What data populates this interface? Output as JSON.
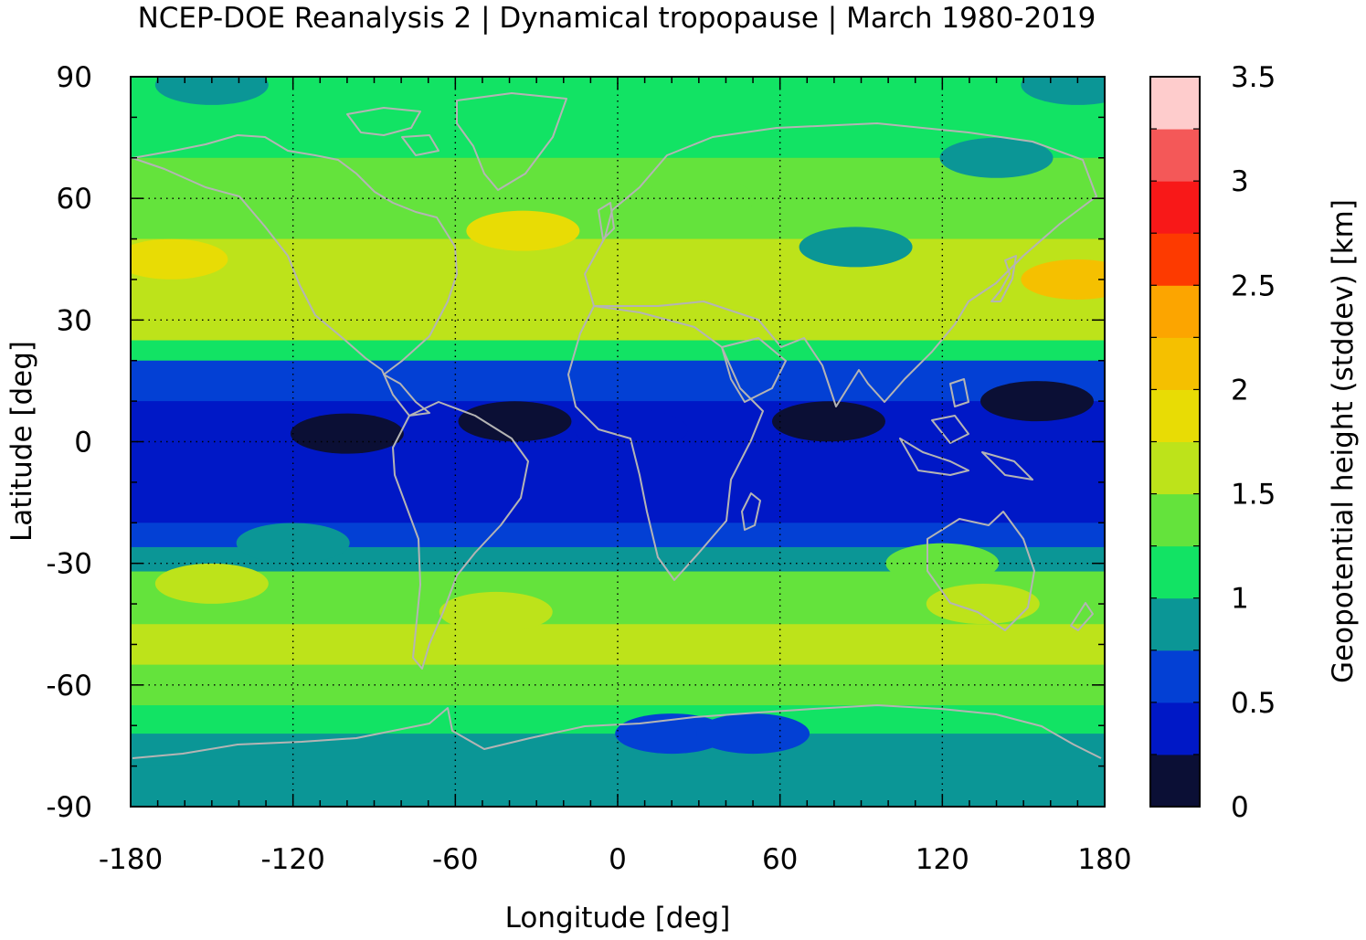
{
  "chart_data": {
    "type": "heatmap",
    "title": "NCEP-DOE Reanalysis 2 | Dynamical tropopause | March 1980-2019",
    "xlabel": "Longitude [deg]",
    "ylabel": "Latitude [deg]",
    "colorbar_label": "Geopotential height (stddev) [km]",
    "xlim": [
      -180,
      180
    ],
    "ylim": [
      -90,
      90
    ],
    "x_ticks": [
      -180,
      -120,
      -60,
      0,
      60,
      120,
      180
    ],
    "y_ticks": [
      90,
      60,
      30,
      0,
      -30,
      -60,
      -90
    ],
    "grid": true,
    "colorbar": {
      "range": [
        0,
        3.5
      ],
      "ticks": [
        0,
        0.5,
        1,
        1.5,
        2,
        2.5,
        3,
        3.5
      ],
      "levels": [
        {
          "min": 0.0,
          "max": 0.25,
          "color": "#0b0f35"
        },
        {
          "min": 0.25,
          "max": 0.5,
          "color": "#0018c6"
        },
        {
          "min": 0.5,
          "max": 0.75,
          "color": "#0340d4"
        },
        {
          "min": 0.75,
          "max": 1.0,
          "color": "#0b9696"
        },
        {
          "min": 1.0,
          "max": 1.25,
          "color": "#12e364"
        },
        {
          "min": 1.25,
          "max": 1.5,
          "color": "#64e33c"
        },
        {
          "min": 1.5,
          "max": 1.75,
          "color": "#bde31a"
        },
        {
          "min": 1.75,
          "max": 2.0,
          "color": "#e8dc05"
        },
        {
          "min": 2.0,
          "max": 2.25,
          "color": "#f5c000"
        },
        {
          "min": 2.25,
          "max": 2.5,
          "color": "#fca500"
        },
        {
          "min": 2.5,
          "max": 2.75,
          "color": "#fd3a00"
        },
        {
          "min": 2.75,
          "max": 3.0,
          "color": "#f81818"
        },
        {
          "min": 3.0,
          "max": 3.25,
          "color": "#f45858"
        },
        {
          "min": 3.25,
          "max": 3.5,
          "color": "#fecccc"
        }
      ]
    },
    "zonal_profile": [
      {
        "lat": 90,
        "value": 1.15
      },
      {
        "lat": 80,
        "value": 1.15
      },
      {
        "lat": 70,
        "value": 1.3
      },
      {
        "lat": 60,
        "value": 1.4
      },
      {
        "lat": 50,
        "value": 1.5
      },
      {
        "lat": 40,
        "value": 1.6
      },
      {
        "lat": 32,
        "value": 1.6
      },
      {
        "lat": 25,
        "value": 1.2
      },
      {
        "lat": 20,
        "value": 0.6
      },
      {
        "lat": 10,
        "value": 0.35
      },
      {
        "lat": 0,
        "value": 0.3
      },
      {
        "lat": -10,
        "value": 0.4
      },
      {
        "lat": -20,
        "value": 0.6
      },
      {
        "lat": -26,
        "value": 0.9
      },
      {
        "lat": -32,
        "value": 1.3
      },
      {
        "lat": -45,
        "value": 1.6
      },
      {
        "lat": -55,
        "value": 1.45
      },
      {
        "lat": -65,
        "value": 1.1
      },
      {
        "lat": -72,
        "value": 0.9
      },
      {
        "lat": -80,
        "value": 0.85
      },
      {
        "lat": -90,
        "value": 0.6
      }
    ],
    "features": [
      {
        "lon": -100,
        "lat": 2,
        "value": 0.15
      },
      {
        "lon": -38,
        "lat": 5,
        "value": 0.15
      },
      {
        "lon": 78,
        "lat": 5,
        "value": 0.15
      },
      {
        "lon": 155,
        "lat": 10,
        "value": 0.15
      },
      {
        "lon": 5,
        "lat": 3,
        "value": 0.3
      },
      {
        "lon": -165,
        "lat": 45,
        "value": 1.85
      },
      {
        "lon": -35,
        "lat": 52,
        "value": 1.8
      },
      {
        "lon": 170,
        "lat": 40,
        "value": 2.1
      },
      {
        "lon": 88,
        "lat": 48,
        "value": 0.9
      },
      {
        "lon": 140,
        "lat": 70,
        "value": 0.9
      },
      {
        "lon": 170,
        "lat": 88,
        "value": 0.9
      },
      {
        "lon": -150,
        "lat": 88,
        "value": 0.9
      },
      {
        "lon": 30,
        "lat": 60,
        "value": 1.3
      },
      {
        "lon": -120,
        "lat": -25,
        "value": 0.9
      },
      {
        "lon": 120,
        "lat": -30,
        "value": 1.3
      },
      {
        "lon": 135,
        "lat": -40,
        "value": 1.7
      },
      {
        "lon": -45,
        "lat": -42,
        "value": 1.6
      },
      {
        "lon": -150,
        "lat": -35,
        "value": 1.5
      },
      {
        "lon": 20,
        "lat": -72,
        "value": 0.6
      },
      {
        "lon": 50,
        "lat": -72,
        "value": 0.6
      }
    ]
  }
}
